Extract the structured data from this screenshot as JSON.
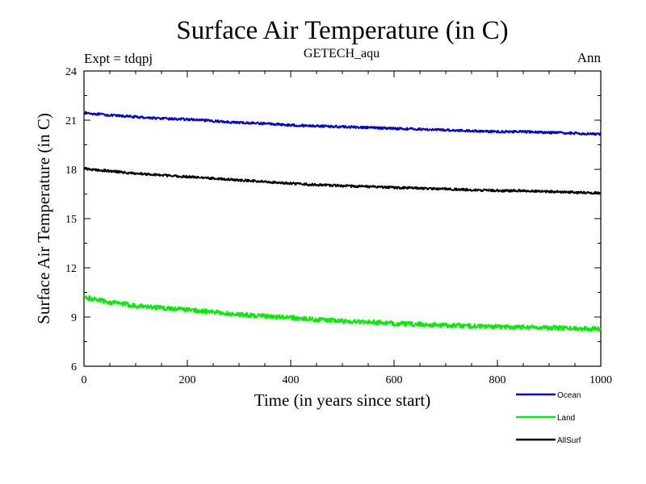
{
  "chart_data": {
    "type": "line",
    "title": "Surface Air Temperature (in C)",
    "subtitle": "GETECH_aqu",
    "left_note": "Expt = tdqpj",
    "right_note": "Ann",
    "xlabel": "Time (in years since start)",
    "ylabel": "Surface Air Temperature (in C)",
    "xlim": [
      0,
      1000
    ],
    "ylim": [
      6,
      24
    ],
    "x_ticks": [
      "0",
      "200",
      "400",
      "600",
      "800",
      "1000"
    ],
    "y_ticks": [
      "6",
      "9",
      "12",
      "15",
      "18",
      "21",
      "24"
    ],
    "grid": false,
    "legend_position": "bottom-right, below plot",
    "series": [
      {
        "name": "Ocean",
        "color": "#0000dd",
        "x": [
          0,
          50,
          100,
          150,
          200,
          250,
          300,
          350,
          400,
          450,
          500,
          550,
          600,
          650,
          700,
          750,
          800,
          850,
          900,
          950,
          1000
        ],
        "values": [
          21.45,
          21.3,
          21.2,
          21.1,
          21.05,
          20.95,
          20.85,
          20.8,
          20.7,
          20.65,
          20.6,
          20.55,
          20.5,
          20.45,
          20.4,
          20.35,
          20.3,
          20.3,
          20.25,
          20.2,
          20.15
        ]
      },
      {
        "name": "Land",
        "color": "#00ee00",
        "x": [
          0,
          50,
          100,
          150,
          200,
          250,
          300,
          350,
          400,
          450,
          500,
          550,
          600,
          650,
          700,
          750,
          800,
          850,
          900,
          950,
          1000
        ],
        "values": [
          10.2,
          9.9,
          9.7,
          9.55,
          9.45,
          9.3,
          9.15,
          9.05,
          8.95,
          8.85,
          8.75,
          8.7,
          8.6,
          8.55,
          8.5,
          8.45,
          8.4,
          8.4,
          8.35,
          8.3,
          8.3
        ]
      },
      {
        "name": "AllSurf",
        "color": "#000000",
        "x": [
          0,
          50,
          100,
          150,
          200,
          250,
          300,
          350,
          400,
          450,
          500,
          550,
          600,
          650,
          700,
          750,
          800,
          850,
          900,
          950,
          1000
        ],
        "values": [
          18.05,
          17.9,
          17.75,
          17.65,
          17.55,
          17.45,
          17.35,
          17.25,
          17.15,
          17.05,
          17.0,
          16.95,
          16.9,
          16.85,
          16.8,
          16.75,
          16.7,
          16.7,
          16.65,
          16.6,
          16.55
        ]
      }
    ]
  }
}
